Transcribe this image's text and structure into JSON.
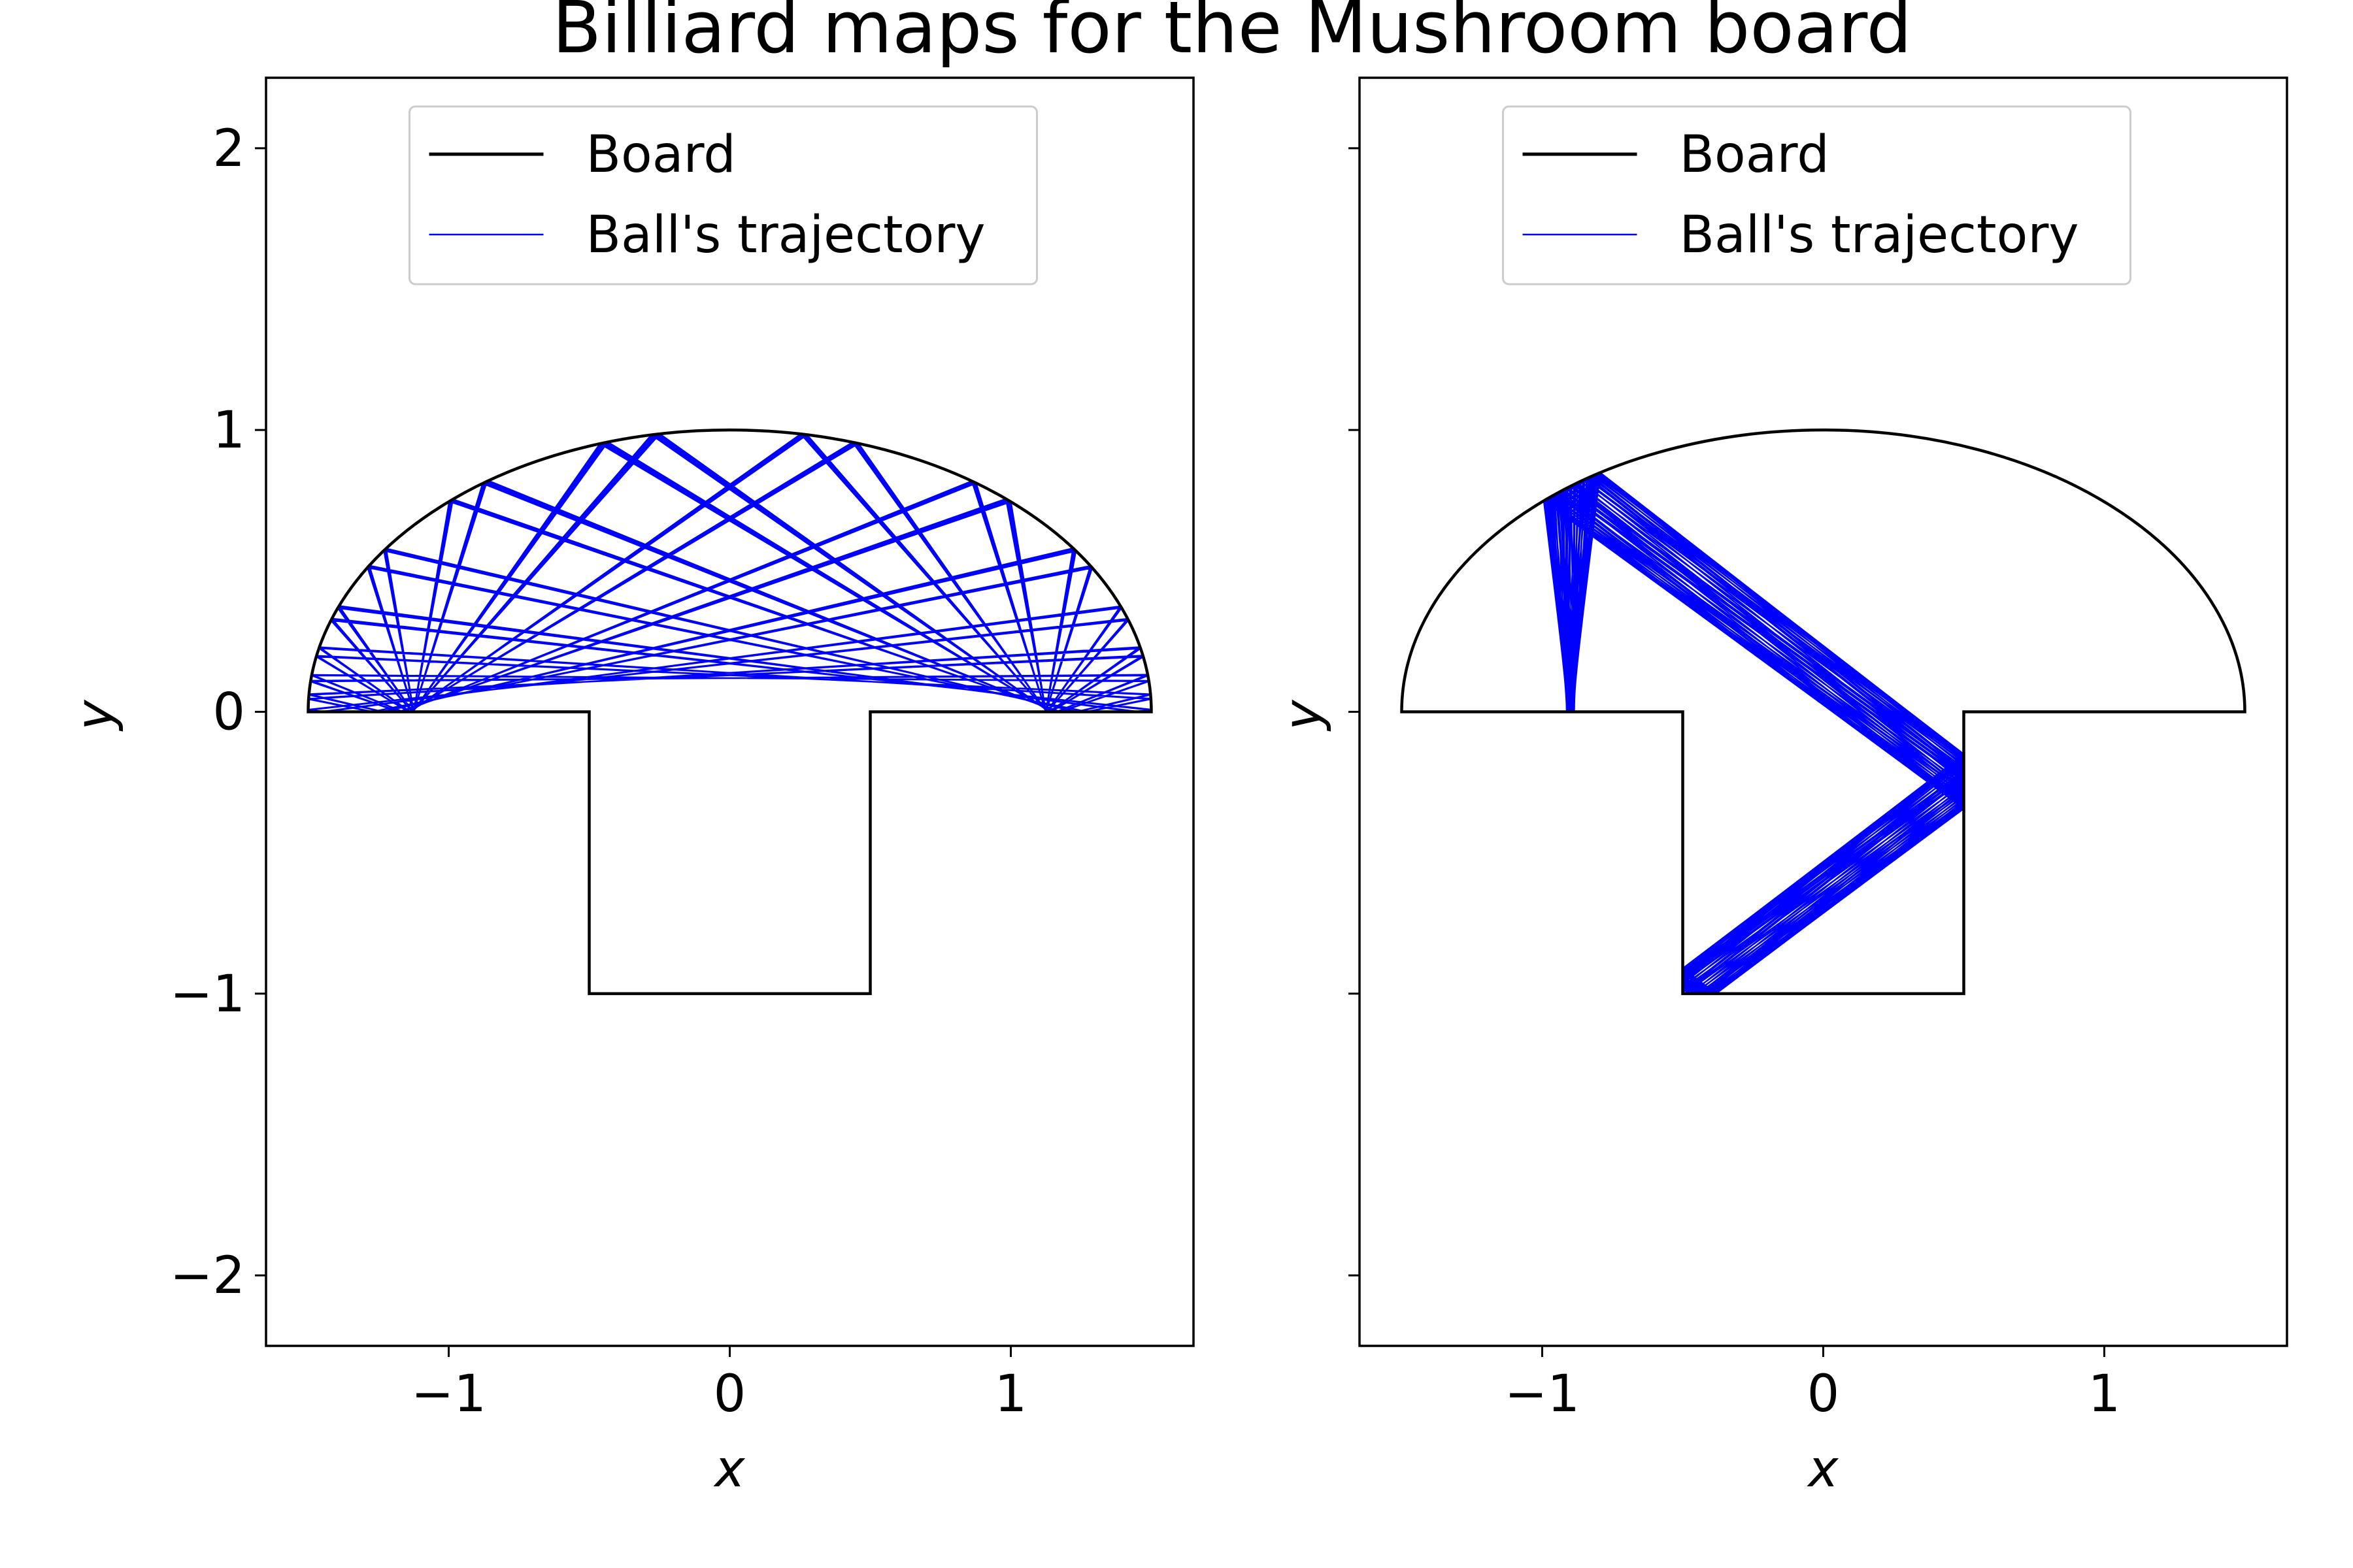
{
  "figure": {
    "title": "Billiard maps for the Mushroom board"
  },
  "colors": {
    "board": "#000000",
    "trajectory": "#0000ff",
    "legend_frame": "#cccccc"
  },
  "chart_data": [
    {
      "type": "line",
      "xlabel": "x",
      "ylabel": "y",
      "xlim": [
        -1.65,
        1.65
      ],
      "ylim": [
        -2.25,
        2.25
      ],
      "xticks": [
        -1,
        0,
        1
      ],
      "yticks": [
        -2,
        -1,
        0,
        1,
        2
      ],
      "xtick_labels": [
        "−1",
        "0",
        "1"
      ],
      "ytick_labels": [
        "−2",
        "−1",
        "0",
        "1",
        "2"
      ],
      "show_ytick_labels": true,
      "grid": false,
      "legend_position": "upper center",
      "series": [
        {
          "name": "Board",
          "role": "board"
        },
        {
          "name": "Ball's trajectory",
          "role": "trajectory"
        }
      ],
      "board": {
        "cap_semi_axis_x": 1.5,
        "cap_semi_axis_y": 1.0,
        "stem_x": [
          -0.5,
          0.5
        ],
        "stem_bottom_y": -1.0
      },
      "trajectory_pattern": "whispering-gallery orbit confined to the cap"
    },
    {
      "type": "line",
      "xlabel": "x",
      "ylabel": "y",
      "xlim": [
        -1.65,
        1.65
      ],
      "ylim": [
        -2.25,
        2.25
      ],
      "xticks": [
        -1,
        0,
        1
      ],
      "yticks": [
        -2,
        -1,
        0,
        1,
        2
      ],
      "xtick_labels": [
        "−1",
        "0",
        "1"
      ],
      "ytick_labels": [
        "−2",
        "−1",
        "0",
        "1",
        "2"
      ],
      "show_ytick_labels": false,
      "grid": false,
      "legend_position": "upper center",
      "series": [
        {
          "name": "Board",
          "role": "board"
        },
        {
          "name": "Ball's trajectory",
          "role": "trajectory"
        }
      ],
      "board": {
        "cap_semi_axis_x": 1.5,
        "cap_semi_axis_y": 1.0,
        "stem_x": [
          -0.5,
          0.5
        ],
        "stem_bottom_y": -1.0
      },
      "trajectory_pattern": "chaotic orbit visiting cap and stem"
    }
  ]
}
